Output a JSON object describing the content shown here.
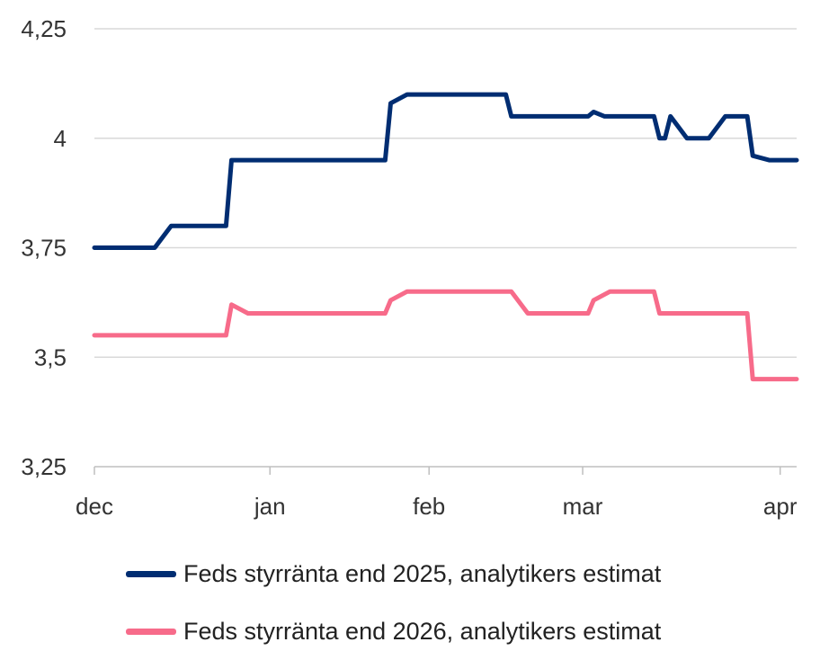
{
  "chart_data": {
    "type": "line",
    "title": "",
    "xlabel": "",
    "ylabel": "",
    "ylim": [
      3.25,
      4.25
    ],
    "yticks": [
      3.25,
      3.5,
      3.75,
      4,
      4.25
    ],
    "ytick_labels": [
      "3,25",
      "3,5",
      "3,75",
      "4",
      "4,25"
    ],
    "xlim": [
      0,
      128
    ],
    "xticks": [
      0,
      32,
      61,
      89,
      125
    ],
    "xtick_labels": [
      "dec",
      "jan",
      "feb",
      "mar",
      "apr"
    ],
    "grid": "horizontal",
    "legend_position": "bottom",
    "series": [
      {
        "name": "Feds styrränta end 2025, analytikers estimat",
        "color": "#002D72",
        "points": [
          [
            0,
            3.75
          ],
          [
            11,
            3.75
          ],
          [
            14,
            3.8
          ],
          [
            24,
            3.8
          ],
          [
            25,
            3.95
          ],
          [
            53,
            3.95
          ],
          [
            54,
            4.08
          ],
          [
            57,
            4.1
          ],
          [
            75,
            4.1
          ],
          [
            76,
            4.05
          ],
          [
            90,
            4.05
          ],
          [
            91,
            4.06
          ],
          [
            93,
            4.05
          ],
          [
            102,
            4.05
          ],
          [
            103,
            4.0
          ],
          [
            104,
            4.0
          ],
          [
            105,
            4.05
          ],
          [
            108,
            4.0
          ],
          [
            112,
            4.0
          ],
          [
            115,
            4.05
          ],
          [
            119,
            4.05
          ],
          [
            120,
            3.96
          ],
          [
            123,
            3.95
          ],
          [
            128,
            3.95
          ]
        ]
      },
      {
        "name": "Feds styrränta end 2026, analytikers estimat",
        "color": "#F76B8A",
        "points": [
          [
            0,
            3.55
          ],
          [
            24,
            3.55
          ],
          [
            25,
            3.62
          ],
          [
            28,
            3.6
          ],
          [
            53,
            3.6
          ],
          [
            54,
            3.63
          ],
          [
            57,
            3.65
          ],
          [
            76,
            3.65
          ],
          [
            79,
            3.6
          ],
          [
            90,
            3.6
          ],
          [
            91,
            3.63
          ],
          [
            94,
            3.65
          ],
          [
            102,
            3.65
          ],
          [
            103,
            3.6
          ],
          [
            119,
            3.6
          ],
          [
            120,
            3.45
          ],
          [
            128,
            3.45
          ]
        ]
      }
    ]
  }
}
